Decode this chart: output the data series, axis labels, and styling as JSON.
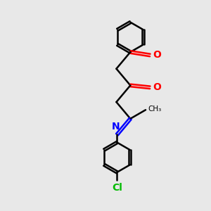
{
  "background_color": "#e8e8e8",
  "bond_color": "#000000",
  "oxygen_color": "#ff0000",
  "nitrogen_color": "#0000ff",
  "chlorine_color": "#00bb00",
  "line_width": 1.8,
  "figsize": [
    3.0,
    3.0
  ],
  "dpi": 100,
  "xlim": [
    0,
    10
  ],
  "ylim": [
    0,
    10
  ]
}
